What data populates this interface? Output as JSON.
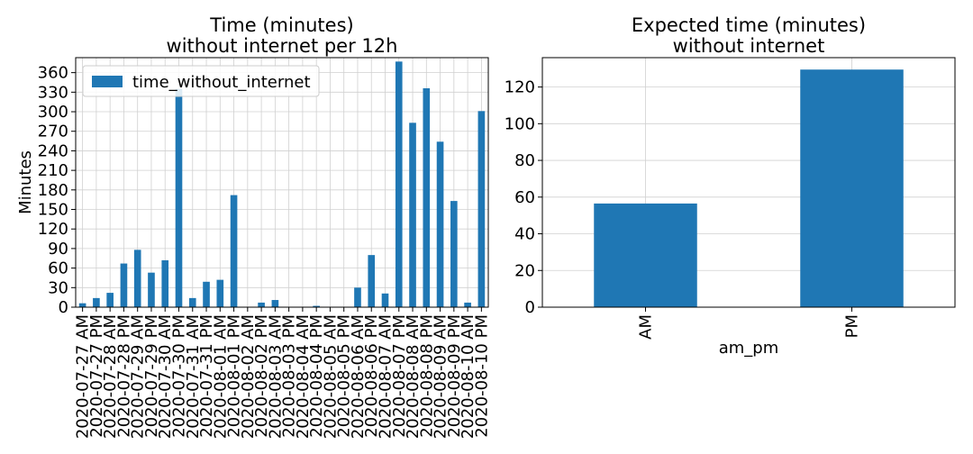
{
  "chart_data": [
    {
      "type": "bar",
      "title_lines": [
        "Time (minutes)",
        "without internet per 12h"
      ],
      "xlabel": "",
      "ylabel": "Minutes",
      "ylim": [
        0,
        383
      ],
      "yticks": [
        0,
        30,
        60,
        90,
        120,
        150,
        180,
        210,
        240,
        270,
        300,
        330,
        360
      ],
      "grid": true,
      "legend": {
        "position": "top-left",
        "entries": [
          "time_without_internet"
        ]
      },
      "color": "#1f77b4",
      "categories": [
        "2020-07-27 AM",
        "2020-07-27 PM",
        "2020-07-28 AM",
        "2020-07-28 PM",
        "2020-07-29 AM",
        "2020-07-29 PM",
        "2020-07-30 AM",
        "2020-07-30 PM",
        "2020-07-31 AM",
        "2020-07-31 PM",
        "2020-08-01 AM",
        "2020-08-01 PM",
        "2020-08-02 AM",
        "2020-08-02 PM",
        "2020-08-03 AM",
        "2020-08-03 PM",
        "2020-08-04 AM",
        "2020-08-04 PM",
        "2020-08-05 AM",
        "2020-08-05 PM",
        "2020-08-06 AM",
        "2020-08-06 PM",
        "2020-08-07 AM",
        "2020-08-07 PM",
        "2020-08-08 AM",
        "2020-08-08 PM",
        "2020-08-09 AM",
        "2020-08-09 PM",
        "2020-08-10 AM",
        "2020-08-10 PM"
      ],
      "values": [
        6,
        14,
        22,
        67,
        88,
        53,
        72,
        335,
        14,
        39,
        42,
        172,
        0,
        7,
        11,
        0,
        0,
        2,
        0,
        0,
        30,
        80,
        21,
        377,
        283,
        336,
        254,
        163,
        7,
        301
      ]
    },
    {
      "type": "bar",
      "title_lines": [
        "Expected time (minutes)",
        "without internet"
      ],
      "xlabel": "am_pm",
      "ylabel": "",
      "ylim": [
        0,
        136
      ],
      "yticks": [
        0,
        20,
        40,
        60,
        80,
        100,
        120
      ],
      "grid": true,
      "color": "#1f77b4",
      "categories": [
        "AM",
        "PM"
      ],
      "values": [
        56.5,
        129.5
      ]
    }
  ]
}
